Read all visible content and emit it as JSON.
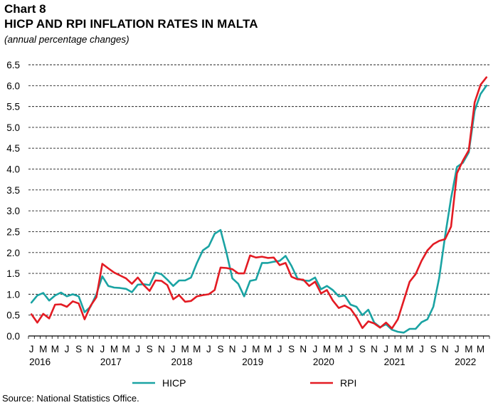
{
  "header": {
    "label": "Chart 8",
    "title": "HICP AND RPI INFLATION RATES IN MALTA",
    "subtitle": "(annual percentage changes)"
  },
  "footer": {
    "source": "Source: National Statistics Office."
  },
  "chart_data": {
    "type": "line",
    "title": "HICP AND RPI INFLATION RATES IN MALTA",
    "subtitle": "(annual percentage changes)",
    "ylim": [
      0,
      6.5
    ],
    "yticks": [
      "0.0",
      "0.5",
      "1.0",
      "1.5",
      "2.0",
      "2.5",
      "3.0",
      "3.5",
      "4.0",
      "4.5",
      "5.0",
      "5.5",
      "6.0",
      "6.5"
    ],
    "grid": "horizontal dashed",
    "legend": "bottom",
    "month_labels": [
      "J",
      "M",
      "M",
      "J",
      "S",
      "N",
      "J",
      "M",
      "M",
      "J",
      "S",
      "N",
      "J",
      "M",
      "M",
      "J",
      "S",
      "N",
      "J",
      "M",
      "M",
      "J",
      "S",
      "N",
      "J",
      "M",
      "M",
      "J",
      "S",
      "N",
      "J",
      "M",
      "M",
      "J",
      "S",
      "N",
      "J",
      "M",
      "M"
    ],
    "year_labels": [
      "2016",
      "2017",
      "2018",
      "2019",
      "2020",
      "2021",
      "2022"
    ],
    "x": [
      "2016-01",
      "2016-02",
      "2016-03",
      "2016-04",
      "2016-05",
      "2016-06",
      "2016-07",
      "2016-08",
      "2016-09",
      "2016-10",
      "2016-11",
      "2016-12",
      "2017-01",
      "2017-02",
      "2017-03",
      "2017-04",
      "2017-05",
      "2017-06",
      "2017-07",
      "2017-08",
      "2017-09",
      "2017-10",
      "2017-11",
      "2017-12",
      "2018-01",
      "2018-02",
      "2018-03",
      "2018-04",
      "2018-05",
      "2018-06",
      "2018-07",
      "2018-08",
      "2018-09",
      "2018-10",
      "2018-11",
      "2018-12",
      "2019-01",
      "2019-02",
      "2019-03",
      "2019-04",
      "2019-05",
      "2019-06",
      "2019-07",
      "2019-08",
      "2019-09",
      "2019-10",
      "2019-11",
      "2019-12",
      "2020-01",
      "2020-02",
      "2020-03",
      "2020-04",
      "2020-05",
      "2020-06",
      "2020-07",
      "2020-08",
      "2020-09",
      "2020-10",
      "2020-11",
      "2020-12",
      "2021-01",
      "2021-02",
      "2021-03",
      "2021-04",
      "2021-05",
      "2021-06",
      "2021-07",
      "2021-08",
      "2021-09",
      "2021-10",
      "2021-11",
      "2021-12",
      "2022-01",
      "2022-02",
      "2022-03",
      "2022-04",
      "2022-05",
      "2022-06"
    ],
    "series": [
      {
        "name": "HICP",
        "color": "#1aa3a3",
        "values": [
          0.8,
          0.97,
          1.03,
          0.85,
          0.97,
          1.04,
          0.95,
          1.0,
          0.95,
          0.57,
          0.7,
          1.0,
          1.43,
          1.2,
          1.16,
          1.15,
          1.13,
          1.05,
          1.23,
          1.24,
          1.22,
          1.52,
          1.48,
          1.35,
          1.2,
          1.33,
          1.33,
          1.4,
          1.75,
          2.05,
          2.15,
          2.45,
          2.54,
          2.0,
          1.38,
          1.25,
          0.95,
          1.32,
          1.35,
          1.75,
          1.75,
          1.78,
          1.8,
          1.92,
          1.68,
          1.38,
          1.33,
          1.32,
          1.4,
          1.12,
          1.2,
          1.1,
          0.95,
          0.97,
          0.75,
          0.7,
          0.5,
          0.63,
          0.32,
          0.21,
          0.28,
          0.15,
          0.1,
          0.08,
          0.17,
          0.17,
          0.33,
          0.4,
          0.7,
          1.4,
          2.4,
          3.3,
          4.05,
          4.15,
          4.4,
          5.4,
          5.8,
          6.0
        ]
      },
      {
        "name": "RPI",
        "color": "#e31b23",
        "values": [
          0.52,
          0.32,
          0.53,
          0.42,
          0.75,
          0.76,
          0.7,
          0.83,
          0.78,
          0.4,
          0.72,
          0.93,
          1.73,
          1.62,
          1.52,
          1.45,
          1.38,
          1.25,
          1.4,
          1.22,
          1.08,
          1.33,
          1.32,
          1.22,
          0.88,
          0.98,
          0.82,
          0.84,
          0.95,
          0.98,
          1.0,
          1.1,
          1.64,
          1.63,
          1.6,
          1.5,
          1.5,
          1.93,
          1.88,
          1.9,
          1.87,
          1.88,
          1.7,
          1.75,
          1.42,
          1.36,
          1.35,
          1.2,
          1.3,
          1.02,
          1.1,
          0.85,
          0.67,
          0.73,
          0.65,
          0.45,
          0.19,
          0.35,
          0.3,
          0.2,
          0.32,
          0.18,
          0.4,
          0.85,
          1.3,
          1.48,
          1.8,
          2.05,
          2.2,
          2.28,
          2.32,
          2.62,
          3.9,
          4.2,
          4.45,
          5.6,
          6.02,
          6.2
        ]
      }
    ]
  }
}
